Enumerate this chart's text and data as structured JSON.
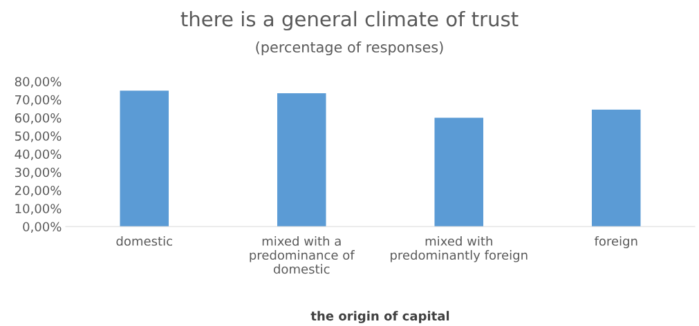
{
  "chart_data": {
    "type": "bar",
    "title": "there is a general climate of trust",
    "subtitle": "(percentage of responses)",
    "xlabel": "the origin of capital",
    "categories": [
      "domestic",
      "mixed with a\npredominance of\ndomestic",
      "mixed with\npredominantly foreign",
      "foreign"
    ],
    "values": [
      75,
      73.5,
      60,
      64.5
    ],
    "color": "#5b9bd5",
    "ylim": [
      0,
      80
    ],
    "yticks": [
      {
        "value": 0,
        "label": "0,00%"
      },
      {
        "value": 10,
        "label": "10,00%"
      },
      {
        "value": 20,
        "label": "20,00%"
      },
      {
        "value": 30,
        "label": "30,00%"
      },
      {
        "value": 40,
        "label": "40,00%"
      },
      {
        "value": 50,
        "label": "50,00%"
      },
      {
        "value": 60,
        "label": "60,00%"
      },
      {
        "value": 70,
        "label": "70,00%"
      },
      {
        "value": 80,
        "label": "80,00%"
      }
    ],
    "grid": false
  }
}
